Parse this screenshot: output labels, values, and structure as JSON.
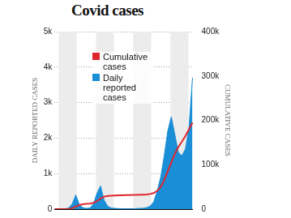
{
  "chart_data": {
    "type": "line",
    "title": "Covid cases",
    "ylabel": "DAILY REPORTED CASES",
    "y2label": "CUMULATIVE CASES",
    "categories": [
      null,
      null,
      null,
      null,
      null,
      null,
      null,
      null,
      null,
      null,
      null,
      null,
      null,
      null,
      null,
      null,
      null,
      null,
      null,
      null,
      null,
      null,
      null,
      null,
      null,
      null,
      null,
      null,
      null,
      null,
      null,
      null,
      null,
      null,
      null,
      null,
      null,
      null,
      null,
      null
    ],
    "series": [
      {
        "name": "Cumulative cases",
        "color": "#e0262c",
        "type": "line",
        "axis": "y2",
        "values": [
          0,
          0,
          100,
          200,
          500,
          2000,
          6000,
          9000,
          11000,
          12000,
          12500,
          14000,
          18000,
          24000,
          28000,
          29500,
          30000,
          30500,
          31000,
          31000,
          31500,
          31500,
          32000,
          32000,
          32500,
          32500,
          33000,
          34000,
          36000,
          41000,
          50000,
          65000,
          85000,
          105000,
          125000,
          140000,
          152000,
          165000,
          180000,
          195000
        ]
      },
      {
        "name": "Daily reported cases",
        "color": "#1a8ed6",
        "type": "area",
        "values": [
          0,
          0,
          5,
          10,
          30,
          150,
          400,
          120,
          40,
          20,
          30,
          150,
          450,
          650,
          250,
          80,
          30,
          20,
          15,
          10,
          10,
          10,
          10,
          15,
          20,
          25,
          40,
          80,
          200,
          500,
          900,
          1500,
          2200,
          2600,
          2100,
          1600,
          1500,
          1700,
          2300,
          3700
        ]
      }
    ],
    "ylim": [
      0,
      5000
    ],
    "yticks": [
      0,
      {
        "value": 1000,
        "label": "1k"
      },
      {
        "value": 2000,
        "label": "2k"
      },
      {
        "value": 3000,
        "label": "3k"
      },
      {
        "value": 4000,
        "label": "4k"
      },
      {
        "value": 5000,
        "label": "5k"
      }
    ],
    "y2lim": [
      0,
      400000
    ],
    "y2ticks": [
      0,
      {
        "value": 100000,
        "label": "100k"
      },
      {
        "value": 200000,
        "label": "200k"
      },
      {
        "value": 300000,
        "label": "300k"
      },
      {
        "value": 400000,
        "label": "400k"
      }
    ],
    "legend": "upper left",
    "grid": true,
    "tick_labels": "y"
  }
}
